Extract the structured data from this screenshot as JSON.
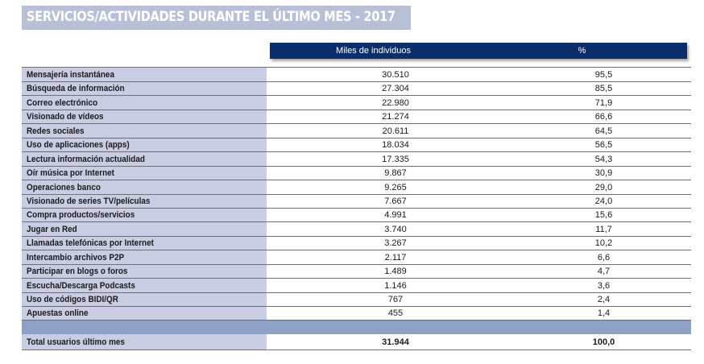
{
  "title": "SERVICIOS/ACTIVIDADES DURANTE EL ÚLTIMO MES - 2017",
  "headers": {
    "individuos": "Miles de individuos",
    "pct": "%"
  },
  "rows": [
    {
      "label": "Mensajería instantánea",
      "value": "30.510",
      "pct": "95,5"
    },
    {
      "label": "Búsqueda de información",
      "value": "27.304",
      "pct": "85,5"
    },
    {
      "label": "Correo electrónico",
      "value": "22.980",
      "pct": "71,9"
    },
    {
      "label": "Visionado de vídeos",
      "value": "21.274",
      "pct": "66,6"
    },
    {
      "label": "Redes sociales",
      "value": "20.611",
      "pct": "64,5"
    },
    {
      "label": "Uso de aplicaciones (apps)",
      "value": "18.034",
      "pct": "56,5"
    },
    {
      "label": "Lectura información actualidad",
      "value": "17.335",
      "pct": "54,3"
    },
    {
      "label": "Oír música por Internet",
      "value": "9.867",
      "pct": "30,9"
    },
    {
      "label": "Operaciones banco",
      "value": "9.265",
      "pct": "29,0"
    },
    {
      "label": "Visionado de series TV/películas",
      "value": "7.667",
      "pct": "24,0"
    },
    {
      "label": "Compra productos/servicios",
      "value": "4.991",
      "pct": "15,6"
    },
    {
      "label": "Jugar en Red",
      "value": "3.740",
      "pct": "11,7"
    },
    {
      "label": "Llamadas telefónicas por Internet",
      "value": "3.267",
      "pct": "10,2"
    },
    {
      "label": "Intercambio archivos P2P",
      "value": "2.117",
      "pct": "6,6"
    },
    {
      "label": "Participar en blogs o foros",
      "value": "1.489",
      "pct": "4,7"
    },
    {
      "label": "Escucha/Descarga Podcasts",
      "value": "1.146",
      "pct": "3,6"
    },
    {
      "label": "Uso de códigos BIDI/QR",
      "value": "767",
      "pct": "2,4"
    },
    {
      "label": "Apuestas online",
      "value": "455",
      "pct": "1,4"
    }
  ],
  "total": {
    "label": "Total usuarios último mes",
    "value": "31.944",
    "pct": "100,0"
  },
  "colors": {
    "title_bg": "#b8c0d8",
    "header_bg": "#0c2d6b",
    "label_bg": "#c8cde3",
    "band_bg": "#8fa0c6"
  }
}
